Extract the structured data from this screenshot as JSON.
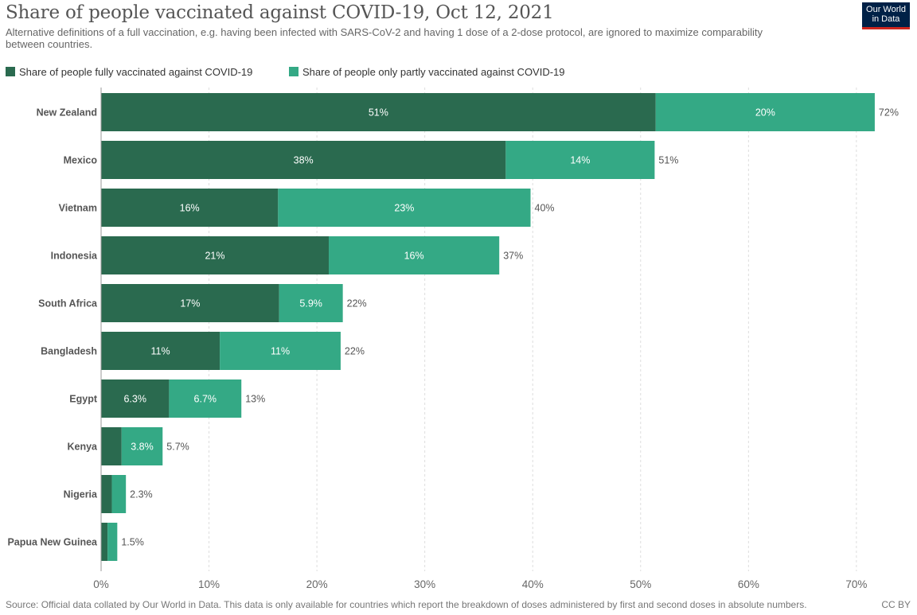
{
  "header": {
    "title": "Share of people vaccinated against COVID-19, Oct 12, 2021",
    "subtitle": "Alternative definitions of a full vaccination, e.g. having been infected with SARS-CoV-2 and having 1 dose of a 2-dose protocol, are ignored to maximize comparability between countries.",
    "logo_line1": "Our World",
    "logo_line2": "in Data"
  },
  "legend": {
    "items": [
      {
        "label": "Share of people fully vaccinated against COVID-19",
        "color": "#2a6a4f"
      },
      {
        "label": "Share of people only partly vaccinated against COVID-19",
        "color": "#34a985"
      }
    ]
  },
  "footer": {
    "source": "Source: Official data collated by Our World in Data. This data is only available for countries which report the breakdown of doses administered by first and second doses in absolute numbers.",
    "license": "CC BY"
  },
  "chart_data": {
    "type": "bar",
    "orientation": "horizontal",
    "stacked": true,
    "categories": [
      "New Zealand",
      "Mexico",
      "Vietnam",
      "Indonesia",
      "South Africa",
      "Bangladesh",
      "Egypt",
      "Kenya",
      "Nigeria",
      "Papua New Guinea"
    ],
    "series": [
      {
        "name": "Share of people fully vaccinated against COVID-19",
        "color": "#2a6a4f",
        "values": [
          51.4,
          37.5,
          16.4,
          21.1,
          16.5,
          11.0,
          6.3,
          1.9,
          1.0,
          0.6
        ],
        "labels": [
          "51%",
          "38%",
          "16%",
          "21%",
          "17%",
          "11%",
          "6.3%",
          "",
          "",
          ""
        ]
      },
      {
        "name": "Share of people only partly vaccinated against COVID-19",
        "color": "#34a985",
        "values": [
          20.3,
          13.8,
          23.4,
          15.8,
          5.9,
          11.2,
          6.7,
          3.8,
          1.3,
          0.9
        ],
        "labels": [
          "20%",
          "14%",
          "23%",
          "16%",
          "5.9%",
          "11%",
          "6.7%",
          "3.8%",
          "",
          ""
        ]
      }
    ],
    "totals": [
      "72%",
      "51%",
      "40%",
      "37%",
      "22%",
      "22%",
      "13%",
      "5.7%",
      "2.3%",
      "1.5%"
    ],
    "x_ticks": [
      0,
      10,
      20,
      30,
      40,
      50,
      60,
      70
    ],
    "x_tick_labels": [
      "0%",
      "10%",
      "20%",
      "30%",
      "40%",
      "50%",
      "60%",
      "70%"
    ],
    "xlim": [
      0,
      72
    ],
    "grid": true,
    "legend_position": "top-left"
  }
}
